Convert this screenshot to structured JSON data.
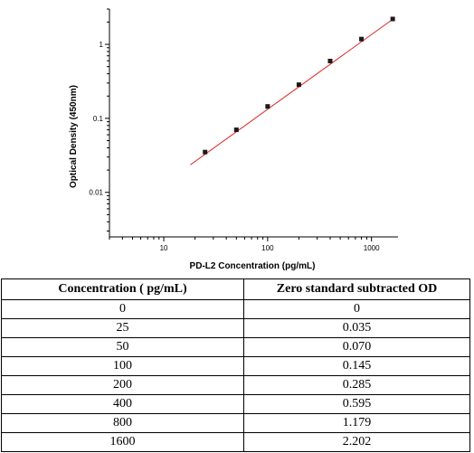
{
  "chart_data": {
    "type": "scatter",
    "xlabel": "PD-L2 Concentration (pg/mL)",
    "ylabel": "Optical Density (450nm)",
    "xscale": "log",
    "yscale": "log",
    "xlim": [
      3,
      1800
    ],
    "ylim": [
      0.0025,
      3
    ],
    "x_ticks": [
      "10",
      "100",
      "1000"
    ],
    "y_ticks": [
      "0.01",
      "0.1",
      "1"
    ],
    "grid": false,
    "series": [
      {
        "x": [
          25,
          50,
          100,
          200,
          400,
          800,
          1600
        ],
        "y": [
          0.035,
          0.07,
          0.145,
          0.285,
          0.595,
          1.179,
          2.202
        ]
      }
    ],
    "fit_line": {
      "color": "#e02020",
      "x": [
        18,
        1650
      ],
      "y": [
        0.0235,
        2.25
      ]
    },
    "marker_color": "#1a1a1a"
  },
  "table": {
    "headers": [
      "Concentration ( pg/mL)",
      "Zero standard subtracted OD"
    ],
    "rows": [
      [
        "0",
        "0"
      ],
      [
        "25",
        "0.035"
      ],
      [
        "50",
        "0.070"
      ],
      [
        "100",
        "0.145"
      ],
      [
        "200",
        "0.285"
      ],
      [
        "400",
        "0.595"
      ],
      [
        "800",
        "1.179"
      ],
      [
        "1600",
        "2.202"
      ]
    ]
  }
}
